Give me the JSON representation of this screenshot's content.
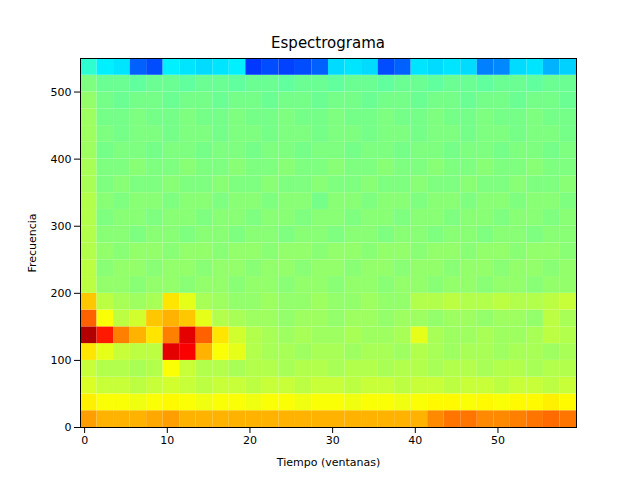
{
  "chart_data": {
    "type": "heatmap",
    "title": "Espectrograma",
    "x_label": "Tiempo (ventanas)",
    "y_label": "Frecuencia",
    "xlim": [
      -0.5,
      59.5
    ],
    "ylim": [
      0,
      550
    ],
    "xticks": [
      0,
      10,
      20,
      30,
      40,
      50
    ],
    "yticks": [
      0,
      100,
      200,
      300,
      400,
      500
    ],
    "zlim": [
      0,
      1
    ],
    "x_bins": [
      -0.5,
      1.5,
      3.5,
      5.5,
      7.5,
      9.5,
      11.5,
      13.5,
      15.5,
      17.5,
      19.5,
      21.5,
      23.5,
      25.5,
      27.5,
      29.5,
      31.5,
      33.5,
      35.5,
      37.5,
      39.5,
      41.5,
      43.5,
      45.5,
      47.5,
      49.5,
      51.5,
      53.5,
      55.5,
      57.5,
      59.5
    ],
    "y_bins": [
      0,
      25,
      50,
      75,
      100,
      125,
      150,
      175,
      200,
      225,
      250,
      275,
      300,
      325,
      350,
      375,
      400,
      425,
      450,
      475,
      500,
      525,
      550
    ],
    "z": [
      [
        0.72,
        0.7,
        0.7,
        0.7,
        0.71,
        0.72,
        0.7,
        0.7,
        0.7,
        0.7,
        0.7,
        0.7,
        0.7,
        0.7,
        0.7,
        0.7,
        0.7,
        0.7,
        0.7,
        0.7,
        0.7,
        0.74,
        0.76,
        0.76,
        0.74,
        0.74,
        0.75,
        0.76,
        0.77,
        0.76
      ],
      [
        0.64,
        0.62,
        0.62,
        0.61,
        0.62,
        0.63,
        0.62,
        0.61,
        0.62,
        0.62,
        0.61,
        0.62,
        0.62,
        0.61,
        0.62,
        0.62,
        0.61,
        0.62,
        0.62,
        0.61,
        0.62,
        0.63,
        0.63,
        0.62,
        0.63,
        0.62,
        0.63,
        0.63,
        0.64,
        0.63
      ],
      [
        0.59,
        0.57,
        0.57,
        0.56,
        0.57,
        0.58,
        0.57,
        0.56,
        0.57,
        0.57,
        0.56,
        0.57,
        0.57,
        0.56,
        0.57,
        0.57,
        0.56,
        0.57,
        0.57,
        0.56,
        0.57,
        0.57,
        0.56,
        0.57,
        0.57,
        0.56,
        0.57,
        0.57,
        0.56,
        0.57
      ],
      [
        0.57,
        0.55,
        0.55,
        0.54,
        0.55,
        0.62,
        0.57,
        0.55,
        0.55,
        0.54,
        0.55,
        0.55,
        0.54,
        0.55,
        0.55,
        0.54,
        0.55,
        0.55,
        0.54,
        0.55,
        0.55,
        0.54,
        0.55,
        0.55,
        0.54,
        0.55,
        0.55,
        0.54,
        0.55,
        0.55
      ],
      [
        0.65,
        0.6,
        0.57,
        0.56,
        0.56,
        0.9,
        0.88,
        0.7,
        0.62,
        0.6,
        0.55,
        0.54,
        0.54,
        0.53,
        0.54,
        0.54,
        0.53,
        0.54,
        0.54,
        0.53,
        0.55,
        0.54,
        0.53,
        0.54,
        0.54,
        0.53,
        0.54,
        0.54,
        0.53,
        0.54
      ],
      [
        0.95,
        0.85,
        0.75,
        0.7,
        0.65,
        0.75,
        0.9,
        0.78,
        0.65,
        0.58,
        0.55,
        0.54,
        0.53,
        0.54,
        0.53,
        0.53,
        0.54,
        0.53,
        0.53,
        0.54,
        0.6,
        0.54,
        0.53,
        0.53,
        0.54,
        0.53,
        0.53,
        0.54,
        0.56,
        0.55
      ],
      [
        0.78,
        0.62,
        0.56,
        0.58,
        0.68,
        0.7,
        0.68,
        0.6,
        0.55,
        0.54,
        0.53,
        0.53,
        0.52,
        0.53,
        0.53,
        0.52,
        0.53,
        0.53,
        0.52,
        0.53,
        0.53,
        0.52,
        0.53,
        0.53,
        0.52,
        0.53,
        0.53,
        0.52,
        0.56,
        0.54
      ],
      [
        0.68,
        0.56,
        0.54,
        0.53,
        0.54,
        0.65,
        0.6,
        0.54,
        0.53,
        0.52,
        0.52,
        0.53,
        0.52,
        0.52,
        0.53,
        0.52,
        0.52,
        0.53,
        0.52,
        0.52,
        0.55,
        0.55,
        0.56,
        0.55,
        0.55,
        0.56,
        0.55,
        0.55,
        0.56,
        0.57
      ],
      [
        0.56,
        0.52,
        0.52,
        0.51,
        0.52,
        0.52,
        0.51,
        0.52,
        0.52,
        0.51,
        0.52,
        0.52,
        0.51,
        0.52,
        0.52,
        0.51,
        0.52,
        0.52,
        0.51,
        0.52,
        0.52,
        0.51,
        0.52,
        0.52,
        0.51,
        0.52,
        0.52,
        0.51,
        0.52,
        0.52
      ],
      [
        0.56,
        0.51,
        0.52,
        0.52,
        0.51,
        0.52,
        0.52,
        0.51,
        0.52,
        0.52,
        0.51,
        0.52,
        0.52,
        0.51,
        0.52,
        0.52,
        0.51,
        0.52,
        0.52,
        0.51,
        0.52,
        0.52,
        0.51,
        0.52,
        0.52,
        0.51,
        0.52,
        0.52,
        0.51,
        0.52
      ],
      [
        0.55,
        0.52,
        0.51,
        0.52,
        0.52,
        0.51,
        0.52,
        0.52,
        0.51,
        0.52,
        0.52,
        0.51,
        0.52,
        0.52,
        0.51,
        0.52,
        0.52,
        0.51,
        0.52,
        0.52,
        0.51,
        0.52,
        0.52,
        0.51,
        0.52,
        0.52,
        0.51,
        0.52,
        0.52,
        0.51
      ],
      [
        0.55,
        0.51,
        0.51,
        0.5,
        0.51,
        0.51,
        0.5,
        0.51,
        0.51,
        0.5,
        0.51,
        0.51,
        0.5,
        0.51,
        0.51,
        0.5,
        0.51,
        0.51,
        0.5,
        0.51,
        0.51,
        0.5,
        0.51,
        0.51,
        0.5,
        0.51,
        0.51,
        0.5,
        0.51,
        0.51
      ],
      [
        0.55,
        0.5,
        0.51,
        0.51,
        0.5,
        0.51,
        0.51,
        0.5,
        0.51,
        0.51,
        0.5,
        0.51,
        0.51,
        0.5,
        0.51,
        0.51,
        0.5,
        0.51,
        0.51,
        0.5,
        0.51,
        0.51,
        0.5,
        0.51,
        0.51,
        0.5,
        0.51,
        0.51,
        0.5,
        0.51
      ],
      [
        0.55,
        0.51,
        0.5,
        0.51,
        0.51,
        0.5,
        0.51,
        0.51,
        0.5,
        0.51,
        0.51,
        0.5,
        0.51,
        0.51,
        0.49,
        0.51,
        0.51,
        0.5,
        0.51,
        0.51,
        0.5,
        0.51,
        0.51,
        0.5,
        0.51,
        0.51,
        0.5,
        0.51,
        0.51,
        0.5
      ],
      [
        0.54,
        0.5,
        0.51,
        0.5,
        0.5,
        0.51,
        0.5,
        0.5,
        0.51,
        0.5,
        0.5,
        0.51,
        0.5,
        0.5,
        0.51,
        0.5,
        0.5,
        0.51,
        0.5,
        0.5,
        0.51,
        0.5,
        0.5,
        0.51,
        0.5,
        0.5,
        0.51,
        0.5,
        0.5,
        0.51
      ],
      [
        0.54,
        0.5,
        0.5,
        0.51,
        0.5,
        0.5,
        0.51,
        0.5,
        0.5,
        0.51,
        0.5,
        0.5,
        0.51,
        0.5,
        0.5,
        0.51,
        0.5,
        0.5,
        0.51,
        0.5,
        0.5,
        0.51,
        0.5,
        0.5,
        0.51,
        0.5,
        0.5,
        0.51,
        0.5,
        0.5
      ],
      [
        0.53,
        0.49,
        0.5,
        0.5,
        0.49,
        0.5,
        0.5,
        0.49,
        0.5,
        0.5,
        0.49,
        0.5,
        0.5,
        0.49,
        0.5,
        0.5,
        0.49,
        0.5,
        0.5,
        0.49,
        0.5,
        0.5,
        0.49,
        0.5,
        0.5,
        0.49,
        0.5,
        0.5,
        0.49,
        0.5
      ],
      [
        0.53,
        0.5,
        0.49,
        0.5,
        0.5,
        0.49,
        0.5,
        0.5,
        0.49,
        0.5,
        0.5,
        0.49,
        0.5,
        0.5,
        0.49,
        0.5,
        0.5,
        0.49,
        0.5,
        0.5,
        0.49,
        0.5,
        0.5,
        0.49,
        0.5,
        0.5,
        0.49,
        0.5,
        0.5,
        0.49
      ],
      [
        0.53,
        0.49,
        0.49,
        0.5,
        0.49,
        0.49,
        0.5,
        0.49,
        0.49,
        0.5,
        0.49,
        0.49,
        0.5,
        0.49,
        0.49,
        0.5,
        0.49,
        0.49,
        0.5,
        0.49,
        0.49,
        0.5,
        0.49,
        0.49,
        0.5,
        0.49,
        0.49,
        0.5,
        0.49,
        0.49
      ],
      [
        0.52,
        0.49,
        0.48,
        0.49,
        0.49,
        0.48,
        0.49,
        0.49,
        0.48,
        0.49,
        0.49,
        0.48,
        0.49,
        0.49,
        0.48,
        0.49,
        0.49,
        0.48,
        0.49,
        0.49,
        0.48,
        0.49,
        0.49,
        0.48,
        0.49,
        0.49,
        0.48,
        0.49,
        0.49,
        0.48
      ],
      [
        0.5,
        0.48,
        0.48,
        0.47,
        0.48,
        0.48,
        0.47,
        0.48,
        0.48,
        0.47,
        0.48,
        0.48,
        0.47,
        0.48,
        0.48,
        0.47,
        0.48,
        0.48,
        0.47,
        0.48,
        0.48,
        0.47,
        0.48,
        0.48,
        0.47,
        0.48,
        0.48,
        0.47,
        0.48,
        0.48
      ],
      [
        0.42,
        0.36,
        0.35,
        0.22,
        0.2,
        0.36,
        0.35,
        0.34,
        0.35,
        0.36,
        0.18,
        0.2,
        0.19,
        0.2,
        0.22,
        0.34,
        0.35,
        0.34,
        0.2,
        0.22,
        0.35,
        0.34,
        0.35,
        0.34,
        0.25,
        0.26,
        0.34,
        0.35,
        0.3,
        0.33
      ]
    ]
  }
}
